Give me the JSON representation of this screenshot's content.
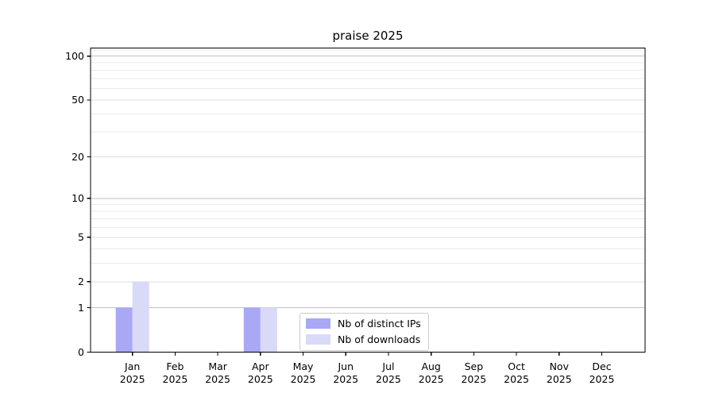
{
  "figure": {
    "title": "praise 2025"
  },
  "colors": {
    "background": "#ffffff",
    "distinct_ips": "#a8a8f5",
    "downloads": "#d9d9f8",
    "spine": "#000000",
    "tick": "#000000",
    "text": "#000000",
    "grid_major": "#c2c2c2",
    "grid_mid": "#dcdcdc",
    "grid_minor": "#ebebeb",
    "legend_border": "#cccccc"
  },
  "legend": {
    "items": [
      {
        "label": "Nb of distinct IPs",
        "color": "#a8a8f5"
      },
      {
        "label": "Nb of downloads",
        "color": "#d9d9f8"
      }
    ]
  },
  "chart_data": {
    "type": "bar",
    "title": "praise 2025",
    "categories": [
      "Jan 2025",
      "Feb 2025",
      "Mar 2025",
      "Apr 2025",
      "May 2025",
      "Jun 2025",
      "Jul 2025",
      "Aug 2025",
      "Sep 2025",
      "Oct 2025",
      "Nov 2025",
      "Dec 2025"
    ],
    "months": [
      "Jan",
      "Feb",
      "Mar",
      "Apr",
      "May",
      "Jun",
      "Jul",
      "Aug",
      "Sep",
      "Oct",
      "Nov",
      "Dec"
    ],
    "year": "2025",
    "series": [
      {
        "name": "Nb of distinct IPs",
        "color": "#a8a8f5",
        "values": [
          1,
          0,
          0,
          1,
          0,
          0,
          0,
          0,
          0,
          0,
          0,
          0
        ]
      },
      {
        "name": "Nb of downloads",
        "color": "#d9d9f8",
        "values": [
          2,
          0,
          0,
          1,
          0,
          0,
          0,
          0,
          0,
          0,
          0,
          0
        ]
      }
    ],
    "xlabel": "",
    "ylabel": "",
    "yscale": "log1p",
    "yticks": [
      0,
      1,
      2,
      5,
      10,
      20,
      50,
      100
    ],
    "yticks_minor": [
      3,
      4,
      6,
      7,
      8,
      9,
      30,
      40,
      60,
      70,
      80,
      90,
      110
    ],
    "ylim": [
      0,
      114
    ],
    "grid": "horizontal major+minor",
    "legend_position": "inside lower-center"
  }
}
